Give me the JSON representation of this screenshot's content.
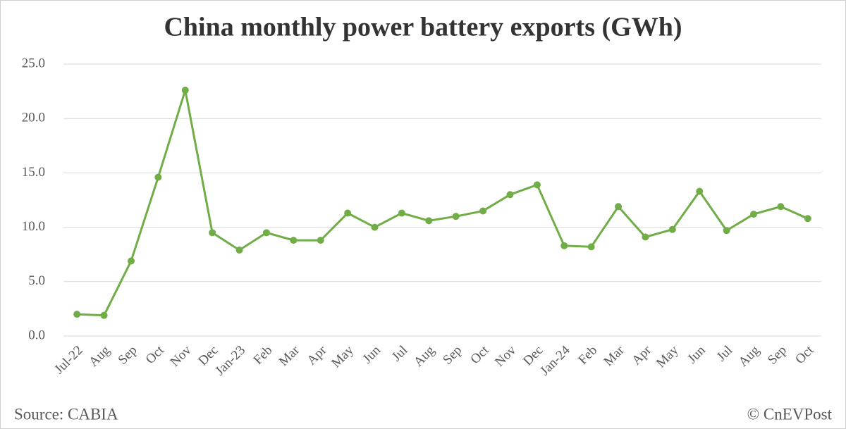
{
  "chart_data": {
    "type": "line",
    "title": "China monthly power battery exports (GWh)",
    "categories": [
      "Jul-22",
      "Aug",
      "Sep",
      "Oct",
      "Nov",
      "Dec",
      "Jan-23",
      "Feb",
      "Mar",
      "Apr",
      "May",
      "Jun",
      "Jul",
      "Aug",
      "Sep",
      "Oct",
      "Nov",
      "Dec",
      "Jan-24",
      "Feb",
      "Mar",
      "Apr",
      "May",
      "Jun",
      "Jul",
      "Aug",
      "Sep",
      "Oct"
    ],
    "series": [
      {
        "name": "Power battery exports",
        "color": "#70ad47",
        "values": [
          2.0,
          1.9,
          6.9,
          14.6,
          22.6,
          9.5,
          7.9,
          9.5,
          8.8,
          8.8,
          11.3,
          10.0,
          11.3,
          10.6,
          11.0,
          11.5,
          13.0,
          13.9,
          8.3,
          8.2,
          11.9,
          9.1,
          9.8,
          13.3,
          9.7,
          11.2,
          11.9,
          10.8
        ]
      }
    ],
    "ylim": [
      0,
      25
    ],
    "yticks": [
      {
        "value": 0,
        "label": "0.0"
      },
      {
        "value": 5,
        "label": "5.0"
      },
      {
        "value": 10,
        "label": "10.0"
      },
      {
        "value": 15,
        "label": "15.0"
      },
      {
        "value": 20,
        "label": "20.0"
      },
      {
        "value": 25,
        "label": "25.0"
      }
    ],
    "grid": true,
    "source": "Source: CABIA",
    "credit": "© CnEVPost"
  }
}
